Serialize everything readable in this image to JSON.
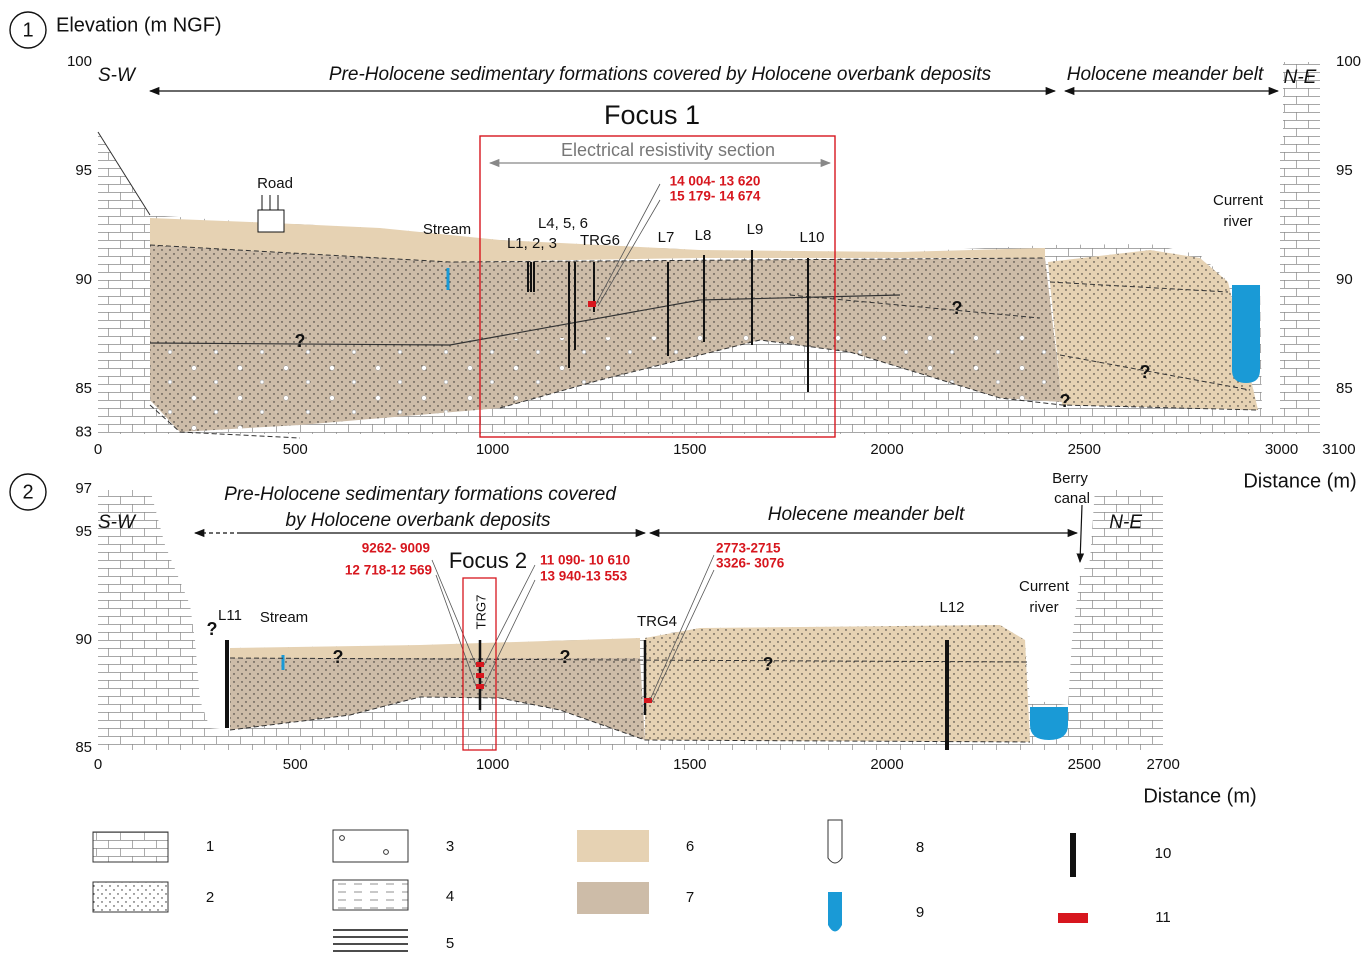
{
  "panel_1": {
    "number": "1",
    "axis_title": "Elevation (m NGF)",
    "y_ticks_left": [
      100,
      95,
      90,
      85,
      83
    ],
    "y_ticks_right": [
      100,
      95,
      90,
      85
    ],
    "x_ticks": [
      0,
      500,
      1000,
      1500,
      2000,
      2500,
      3000,
      3100
    ],
    "x_axis_title": "Distance (m)",
    "side_sw": "S-W",
    "side_ne": "N-E",
    "zone_pre_holocene": "Pre-Holocene sedimentary formations covered by Holocene overbank deposits",
    "zone_meander": "Holocene meander belt",
    "focus": "Focus 1",
    "resistivity": "Electrical resistivity section",
    "dates": [
      "14 004- 13 620",
      "15 179- 14 674"
    ],
    "labels": [
      "Road",
      "Stream",
      "L4, 5, 6",
      "L1, 2, 3",
      "TRG6",
      "L7",
      "L8",
      "L9",
      "L10",
      "Current",
      "river"
    ],
    "uncertain": "?"
  },
  "panel_2": {
    "number": "2",
    "y_ticks": [
      97,
      95,
      90,
      85
    ],
    "x_ticks": [
      0,
      500,
      1000,
      1500,
      2000,
      2500,
      2700
    ],
    "x_axis_title": "Distance (m)",
    "side_sw": "S-W",
    "side_ne": "N-E",
    "zone_pre_holocene": [
      "Pre-Holocene sedimentary formations covered",
      "by Holocene overbank deposits"
    ],
    "zone_meander": "Holecene meander belt",
    "focus": "Focus 2",
    "dates_left": [
      "9262- 9009",
      "12 718-12 569"
    ],
    "dates_right": [
      "11 090- 10 610",
      "13 940-13 553"
    ],
    "dates_trg4": [
      "2773-2715",
      "3326- 3076"
    ],
    "labels": [
      "TRG7",
      "L11",
      "Stream",
      "TRG4",
      "L12",
      "Berry",
      "canal",
      "Current",
      "river"
    ],
    "uncertain": "?"
  },
  "legend": [
    "1",
    "2",
    "3",
    "4",
    "5",
    "6",
    "7",
    "8",
    "9",
    "10",
    "11"
  ]
}
